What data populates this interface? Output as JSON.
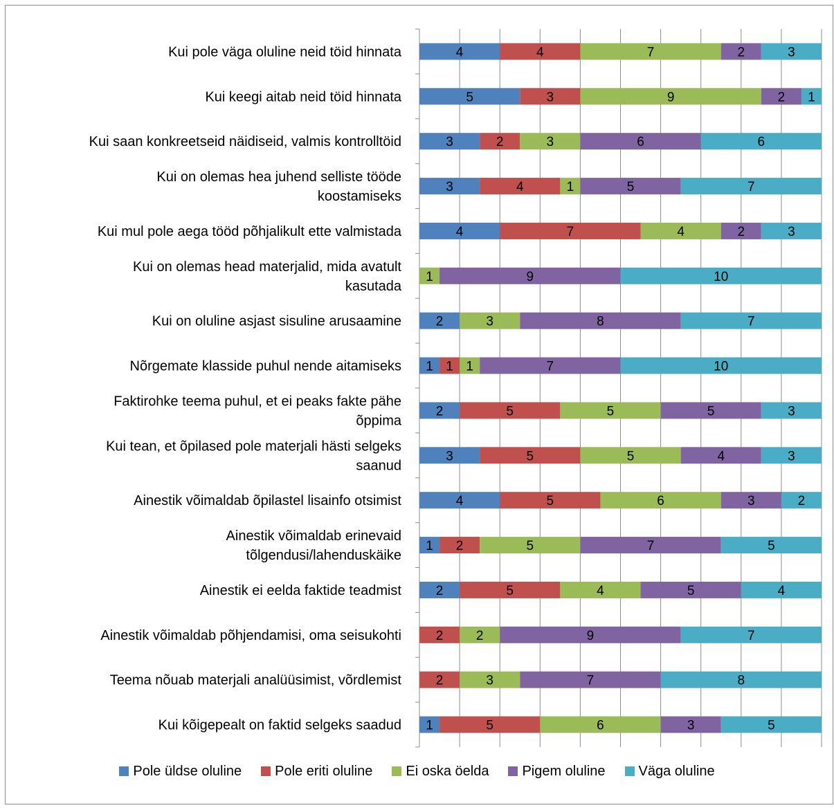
{
  "chart_data": {
    "type": "bar",
    "orientation": "horizontal",
    "stacked": "percent",
    "grid": true,
    "legend_position": "bottom",
    "categories": [
      [
        "Kui pole väga oluline neid töid hinnata"
      ],
      [
        "Kui keegi aitab neid töid hinnata"
      ],
      [
        "Kui saan konkreetseid näidiseid, valmis kontrolltöid"
      ],
      [
        "Kui on olemas hea juhend selliste tööde",
        "koostamiseks"
      ],
      [
        "Kui mul pole aega tööd põhjalikult ette valmistada"
      ],
      [
        "Kui on olemas head materjalid, mida avatult",
        "kasutada"
      ],
      [
        "Kui on oluline asjast sisuline arusaamine"
      ],
      [
        "Nõrgemate klasside puhul nende aitamiseks"
      ],
      [
        "Faktirohke teema puhul, et ei peaks fakte pähe",
        "õppima"
      ],
      [
        "Kui tean, et õpilased pole materjali hästi selgeks",
        "saanud"
      ],
      [
        "Ainestik võimaldab õpilastel lisainfo otsimist"
      ],
      [
        "Ainestik võimaldab erinevaid",
        "tõlgendusi/lahenduskäike"
      ],
      [
        "Ainestik ei eelda faktide teadmist"
      ],
      [
        "Ainestik võimaldab põhjendamisi, oma seisukohti"
      ],
      [
        "Teema nõuab materjali analüüsimist, võrdlemist"
      ],
      [
        "Kui kõigepealt on faktid selgeks saadud"
      ]
    ],
    "series": [
      {
        "name": "Pole üldse oluline",
        "color": "#4f81bd",
        "values": [
          4,
          5,
          3,
          3,
          4,
          0,
          2,
          1,
          2,
          3,
          4,
          1,
          2,
          0,
          0,
          1
        ]
      },
      {
        "name": "Pole eriti oluline",
        "color": "#c0504d",
        "values": [
          4,
          3,
          2,
          4,
          7,
          0,
          0,
          1,
          5,
          5,
          5,
          2,
          5,
          2,
          2,
          5
        ]
      },
      {
        "name": "Ei oska öelda",
        "color": "#9bbb59",
        "values": [
          7,
          9,
          3,
          1,
          4,
          1,
          3,
          1,
          5,
          5,
          6,
          5,
          4,
          2,
          3,
          6
        ]
      },
      {
        "name": "Pigem oluline",
        "color": "#8064a2",
        "values": [
          2,
          2,
          6,
          5,
          2,
          9,
          8,
          7,
          5,
          4,
          3,
          7,
          5,
          9,
          7,
          3
        ]
      },
      {
        "name": "Väga oluline",
        "color": "#4bacc6",
        "values": [
          3,
          1,
          6,
          7,
          3,
          10,
          7,
          10,
          3,
          3,
          2,
          5,
          4,
          7,
          8,
          5
        ]
      }
    ]
  }
}
